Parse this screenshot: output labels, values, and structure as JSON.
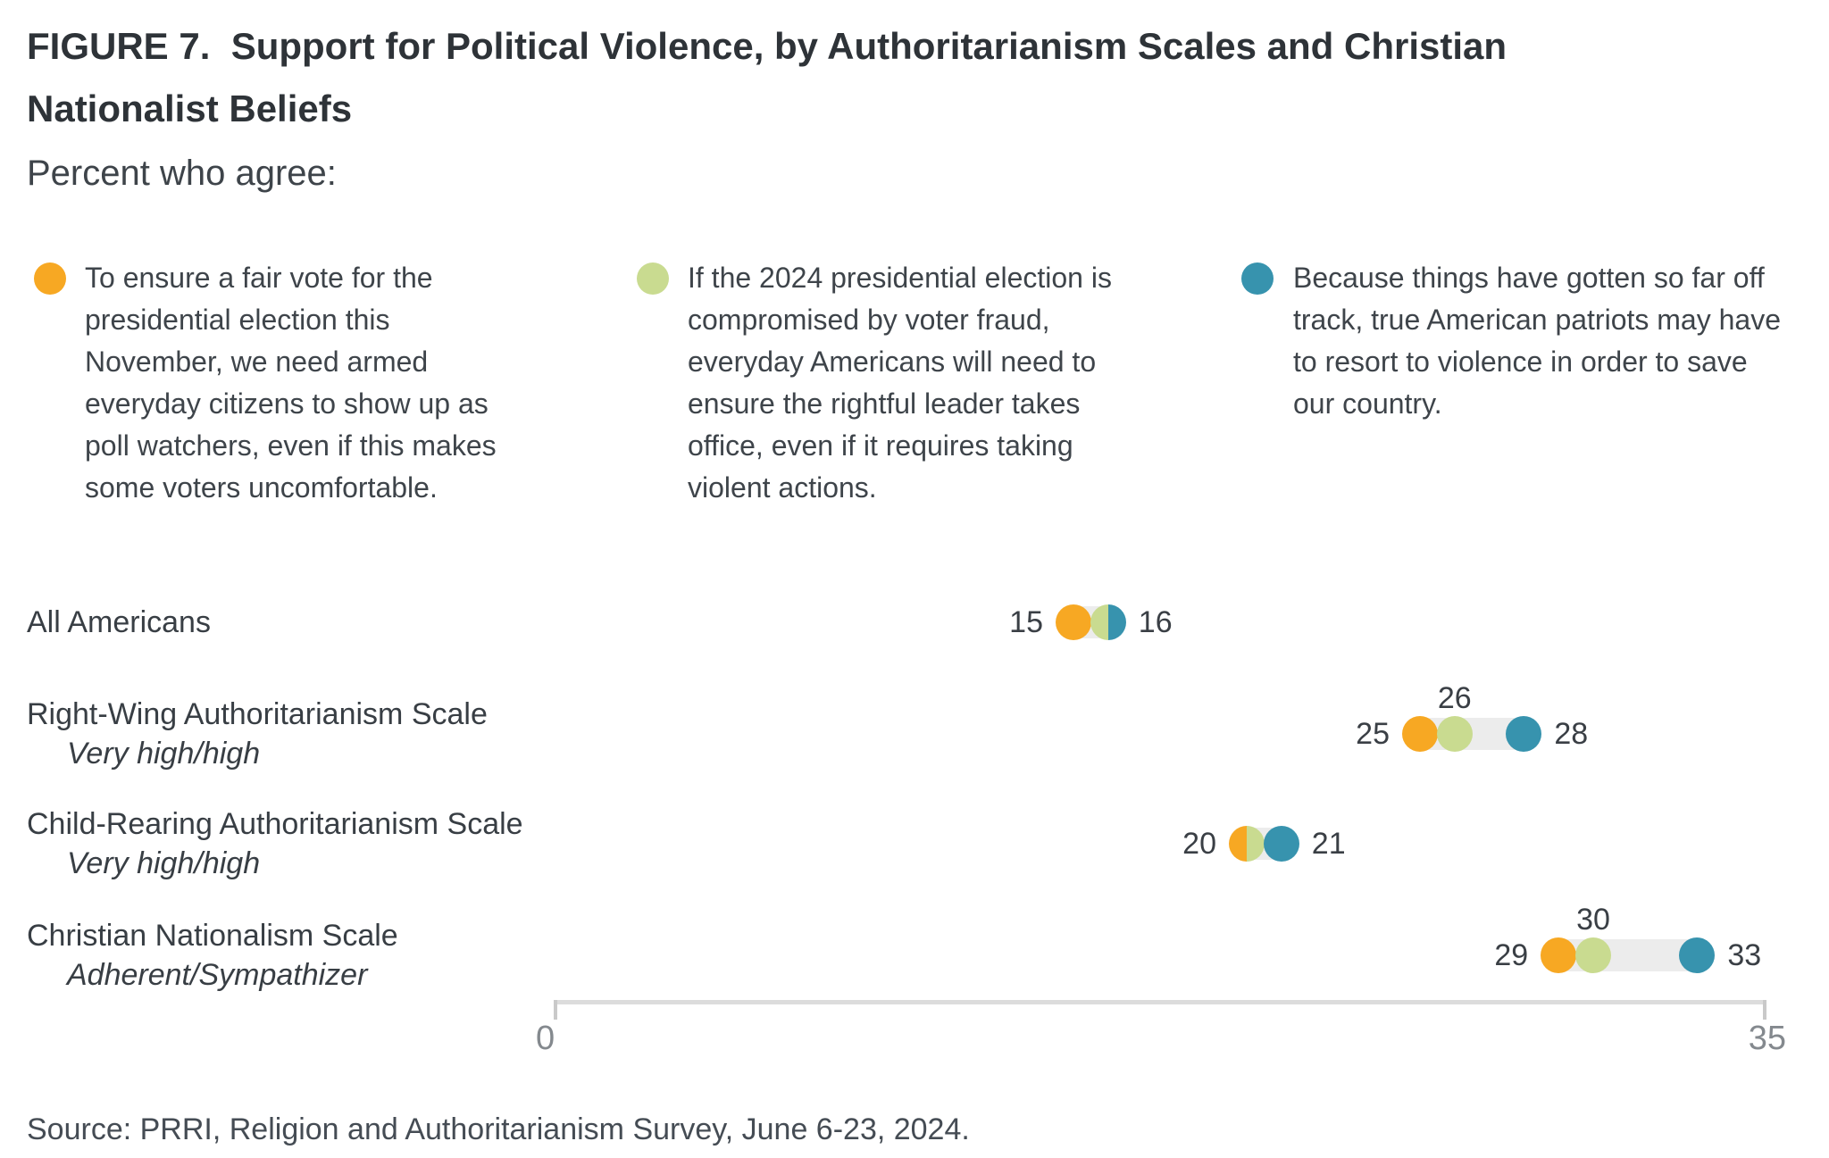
{
  "colors": {
    "orange": "#F7A823",
    "green": "#C9DB90",
    "teal": "#3793AE",
    "connector_bar": "#ECECEC",
    "axis_line": "#DCDCDC",
    "tick": "#C9C9C9"
  },
  "header": {
    "title_line1": "FIGURE 7.  Support for Political Violence, by Authoritarianism Scales and Christian",
    "title_line2": "Nationalist Beliefs",
    "subtitle": "Percent who agree:"
  },
  "legend": {
    "items": [
      {
        "color_key": "orange",
        "text": "To ensure a fair vote for the presidential election this November, we need armed everyday citizens to show up as poll watchers, even if this makes some voters uncomfortable."
      },
      {
        "color_key": "green",
        "text": "If the 2024 presidential election is compromised by voter fraud, everyday Americans will need to ensure the rightful leader takes office, even if it requires taking violent actions."
      },
      {
        "color_key": "teal",
        "text": "Because things have gotten so far off track, true American patriots may have to resort to violence in order to save our country."
      }
    ]
  },
  "chart_data": {
    "type": "scatter",
    "subtype": "dot-plot-with-range-bars",
    "x_axis": {
      "min": 0,
      "max": 35,
      "min_label": "0",
      "max_label": "35",
      "grid": false
    },
    "categories": [
      {
        "label": "All Americans",
        "sublabel": ""
      },
      {
        "label": "Right-Wing Authoritarianism Scale",
        "sublabel": "Very high/high"
      },
      {
        "label": "Child-Rearing Authoritarianism Scale",
        "sublabel": "Very high/high"
      },
      {
        "label": "Christian Nationalism Scale",
        "sublabel": "Adherent/Sympathizer"
      }
    ],
    "series": [
      {
        "name": "Armed poll watchers statement",
        "color_key": "orange",
        "values": [
          15,
          25,
          20,
          29
        ]
      },
      {
        "name": "Voter fraud / rightful leader statement",
        "color_key": "green",
        "values": [
          16,
          26,
          20,
          30
        ]
      },
      {
        "name": "Patriots resort to violence statement",
        "color_key": "teal",
        "values": [
          16,
          28,
          21,
          33
        ]
      }
    ],
    "value_labels": [
      [
        {
          "text": "15",
          "pos": "left",
          "value": 15
        },
        {
          "text": "16",
          "pos": "right",
          "value": 16
        }
      ],
      [
        {
          "text": "25",
          "pos": "left",
          "value": 25
        },
        {
          "text": "26",
          "pos": "above",
          "value": 26
        },
        {
          "text": "28",
          "pos": "right",
          "value": 28
        }
      ],
      [
        {
          "text": "20",
          "pos": "left",
          "value": 20
        },
        {
          "text": "21",
          "pos": "right",
          "value": 21
        }
      ],
      [
        {
          "text": "29",
          "pos": "left",
          "value": 29
        },
        {
          "text": "30",
          "pos": "above",
          "value": 30
        },
        {
          "text": "33",
          "pos": "right",
          "value": 33
        }
      ]
    ]
  },
  "footer": {
    "source": "Source: PRRI, Religion and Authoritarianism Survey, June 6-23, 2024."
  }
}
